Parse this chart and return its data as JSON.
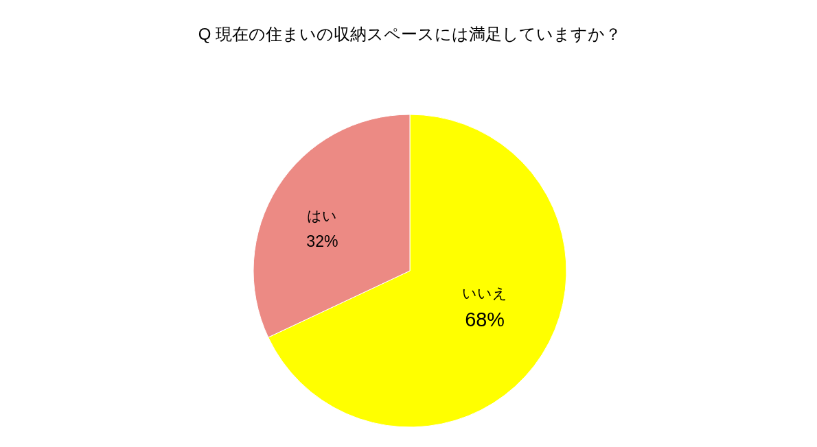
{
  "chart_data": {
    "type": "pie",
    "title": "Q 現在の住まいの収納スペースには満足していますか？",
    "categories": [
      "いいえ",
      "はい"
    ],
    "values": [
      68,
      32
    ],
    "colors": [
      "#ffff00",
      "#ec8a84"
    ],
    "value_labels": [
      "68%",
      "32%"
    ]
  }
}
